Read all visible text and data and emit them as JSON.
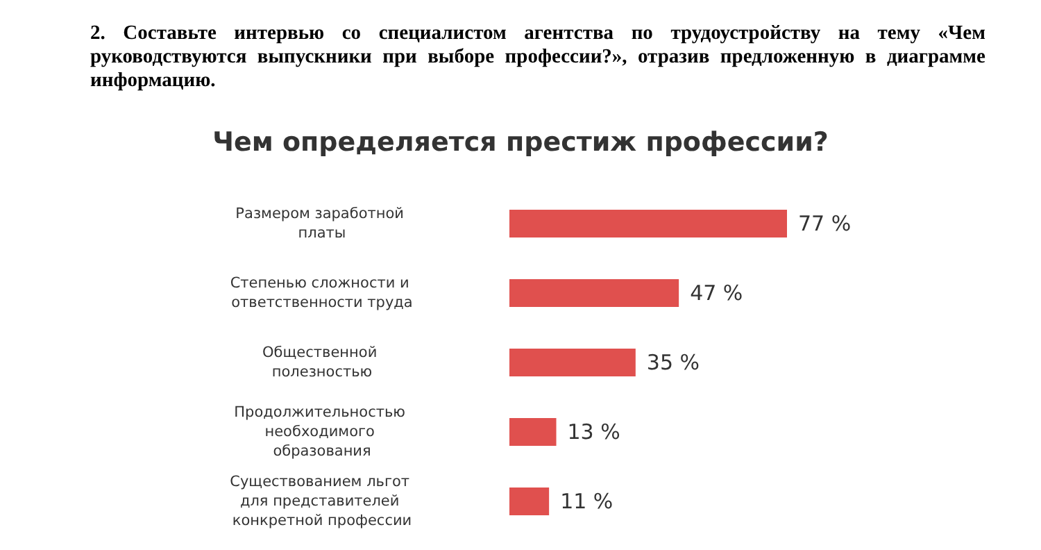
{
  "chart_data": {
    "type": "bar",
    "orientation": "horizontal",
    "title": "Чем определяется престиж профессии?",
    "annotations": [
      "2. Составьте интервью со специалистом агентства по трудоустройству на тему «Чем руководствуются выпускники при выборе профессии?», отразив предложенную в диаграмме информацию."
    ],
    "categories": [
      "Размером заработной платы",
      "Степенью сложности и ответственности труда",
      "Общественной полезностью",
      "Продолжительностью необходимого образования",
      "Существованием льгот для представителей конкретной профессии"
    ],
    "values": [
      77,
      47,
      35,
      13,
      11
    ],
    "value_labels": [
      "77 %",
      "47 %",
      "35 %",
      "13 %",
      "11 %"
    ],
    "color": "#e0504e"
  }
}
